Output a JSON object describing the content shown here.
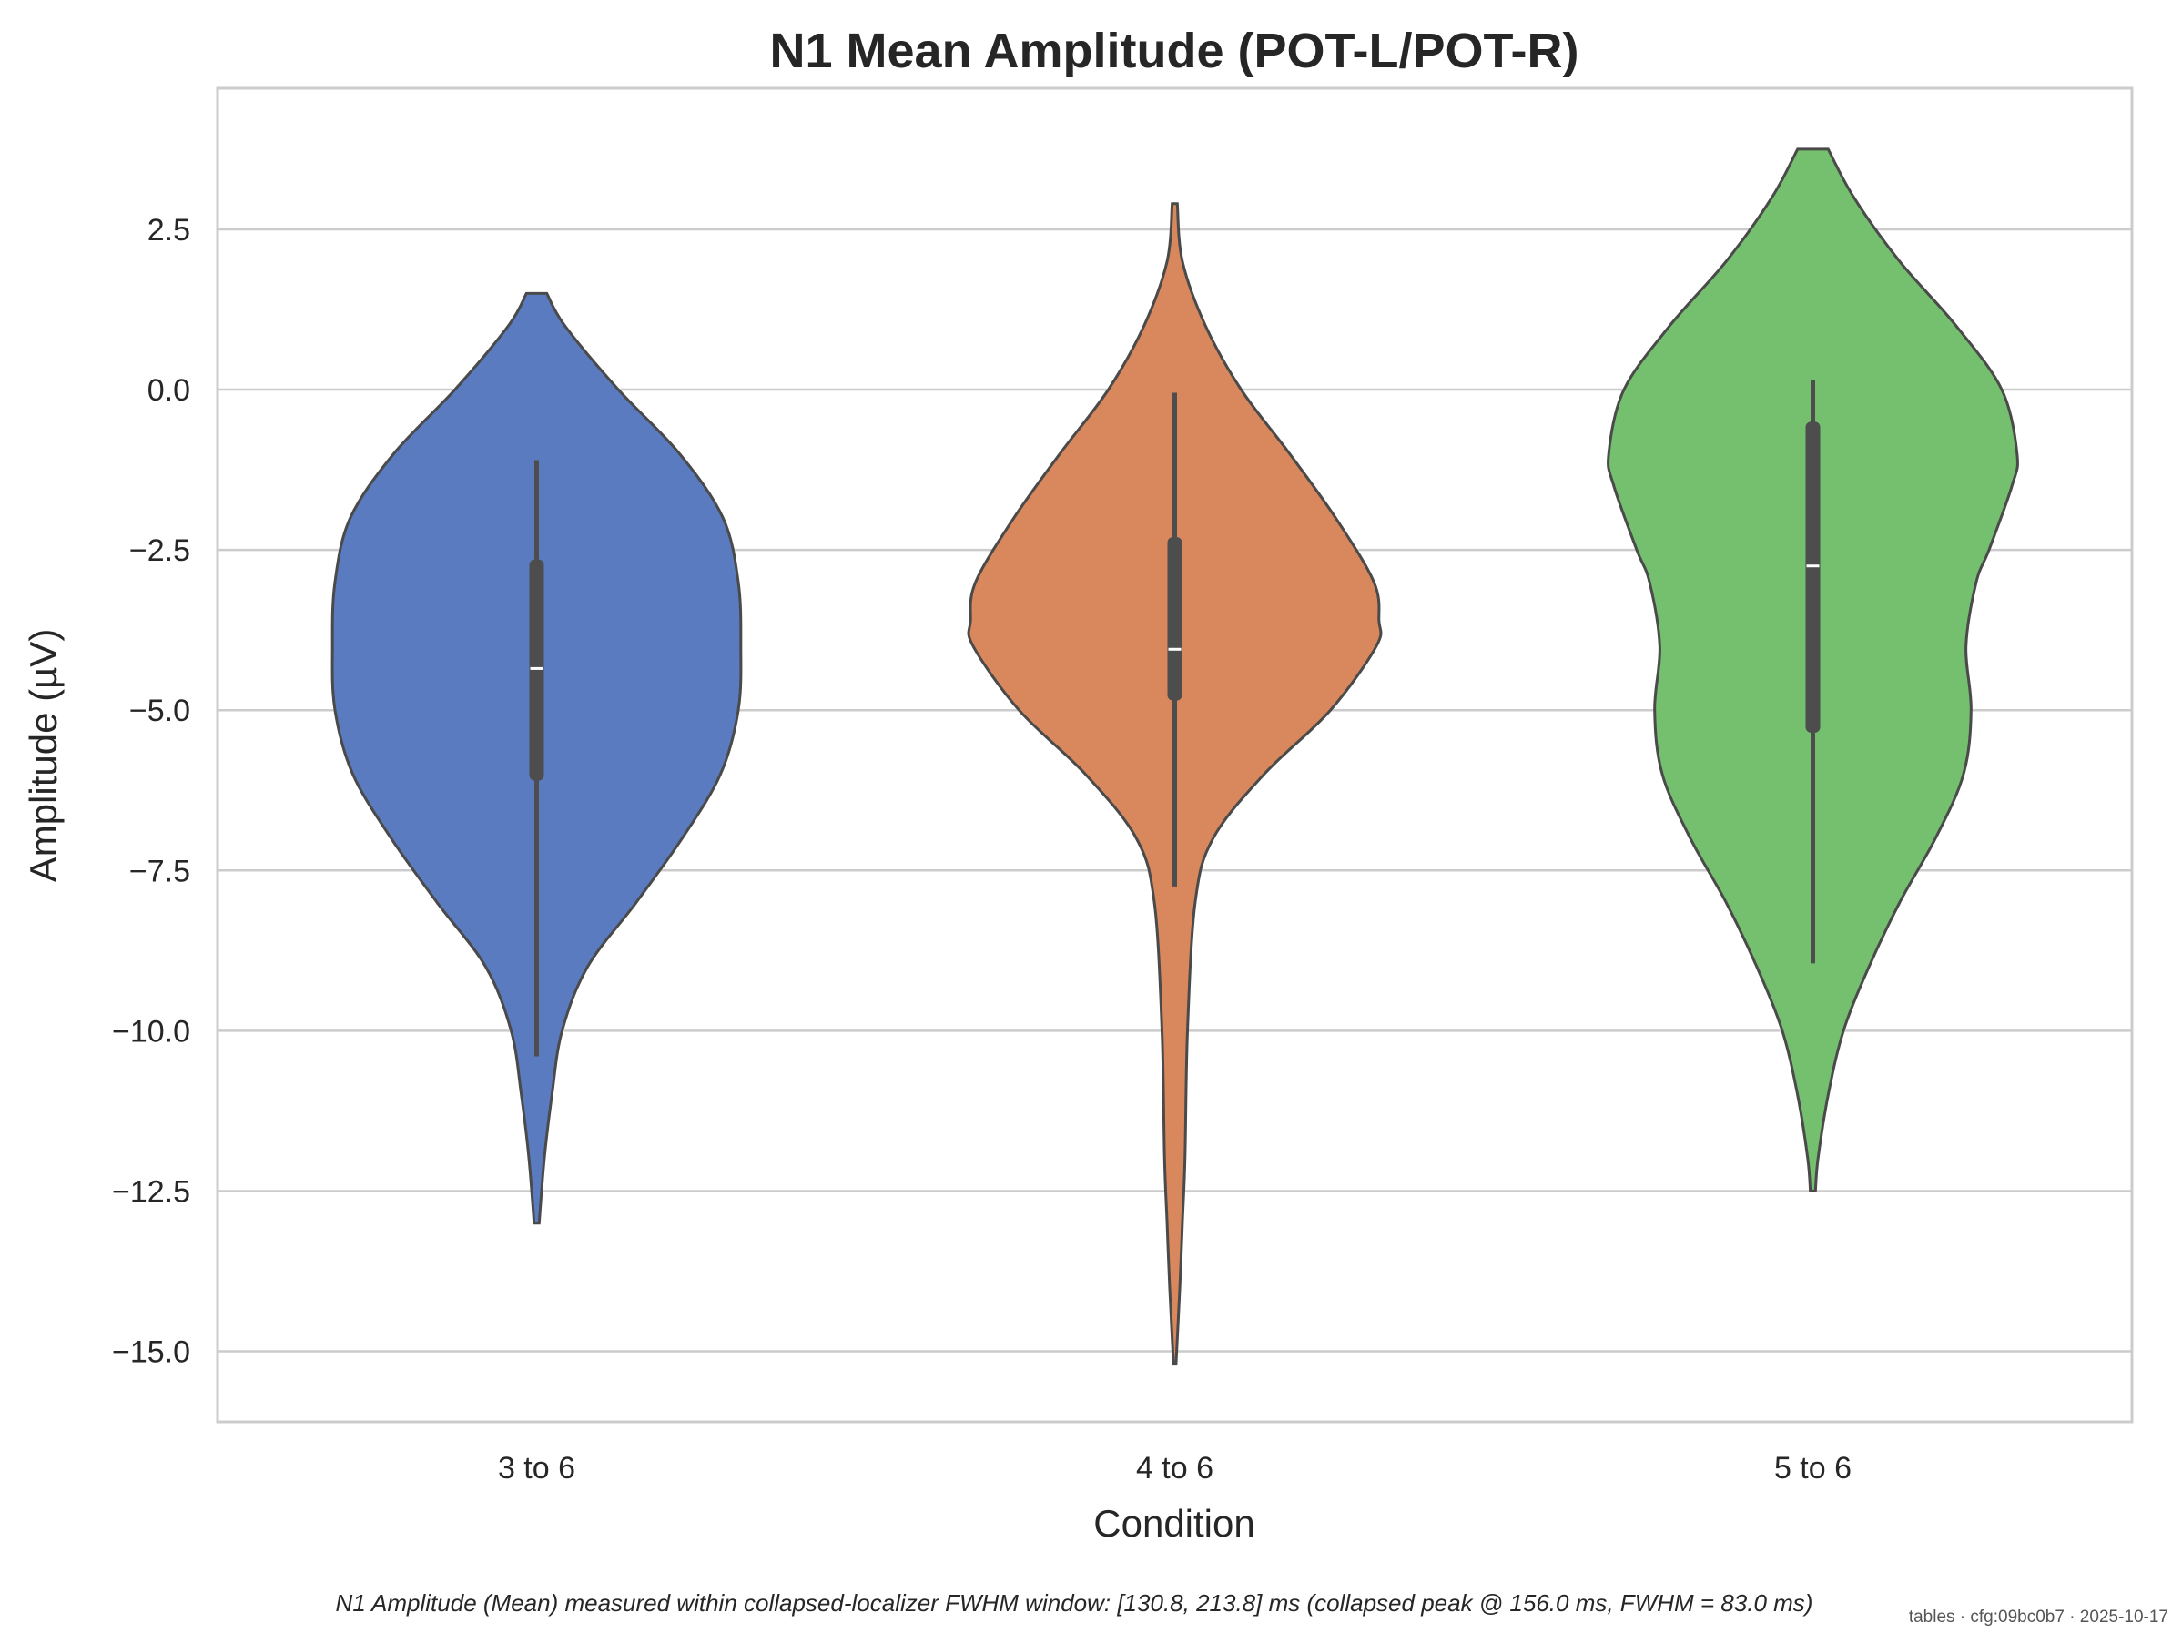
{
  "chart_data": {
    "type": "violin",
    "title": "N1 Mean Amplitude (POT-L/POT-R)",
    "xlabel": "Condition",
    "ylabel": "Amplitude (µV)",
    "categories": [
      "3 to 6",
      "4 to 6",
      "5 to 6"
    ],
    "ylim": [
      -16.1,
      4.7
    ],
    "yticks": [
      2.5,
      0.0,
      -2.5,
      -5.0,
      -7.5,
      -10.0,
      -12.5,
      -15.0
    ],
    "ytick_labels": [
      "2.5",
      "0.0",
      "−2.5",
      "−5.0",
      "−7.5",
      "−10.0",
      "−12.5",
      "−15.0"
    ],
    "grid": "horizontal",
    "series": [
      {
        "category": "3 to 6",
        "color": "#5a7bbf",
        "range": [
          -13.0,
          1.5
        ],
        "median": -4.35,
        "quartiles": [
          -6.1,
          -2.65
        ],
        "whiskers": [
          -10.4,
          -1.1
        ],
        "density": [
          [
            1.5,
            0.04
          ],
          [
            1.0,
            0.11
          ],
          [
            0.0,
            0.32
          ],
          [
            -1.0,
            0.56
          ],
          [
            -2.0,
            0.73
          ],
          [
            -3.0,
            0.79
          ],
          [
            -4.0,
            0.8
          ],
          [
            -5.0,
            0.79
          ],
          [
            -6.0,
            0.72
          ],
          [
            -7.0,
            0.57
          ],
          [
            -8.0,
            0.39
          ],
          [
            -9.0,
            0.2
          ],
          [
            -10.0,
            0.1
          ],
          [
            -11.0,
            0.06
          ],
          [
            -12.0,
            0.03
          ],
          [
            -13.0,
            0.01
          ]
        ]
      },
      {
        "category": "4 to 6",
        "color": "#d9885e",
        "range": [
          -15.2,
          2.9
        ],
        "median": -4.05,
        "quartiles": [
          -4.85,
          -2.3
        ],
        "whiskers": [
          -7.75,
          -0.05
        ],
        "density": [
          [
            2.9,
            0.01
          ],
          [
            2.0,
            0.03
          ],
          [
            1.0,
            0.12
          ],
          [
            0.0,
            0.26
          ],
          [
            -1.0,
            0.45
          ],
          [
            -2.0,
            0.63
          ],
          [
            -3.0,
            0.78
          ],
          [
            -3.6,
            0.8
          ],
          [
            -4.0,
            0.79
          ],
          [
            -5.0,
            0.61
          ],
          [
            -6.0,
            0.35
          ],
          [
            -7.0,
            0.15
          ],
          [
            -8.0,
            0.08
          ],
          [
            -10.0,
            0.05
          ],
          [
            -12.0,
            0.04
          ],
          [
            -13.0,
            0.03
          ],
          [
            -14.0,
            0.02
          ],
          [
            -15.2,
            0.005
          ]
        ]
      },
      {
        "category": "5 to 6",
        "color": "#74c06f",
        "range": [
          -12.5,
          3.75
        ],
        "median": -2.75,
        "quartiles": [
          -5.35,
          -0.5
        ],
        "whiskers": [
          -8.95,
          0.15
        ],
        "density": [
          [
            3.75,
            0.06
          ],
          [
            3.0,
            0.16
          ],
          [
            2.0,
            0.34
          ],
          [
            1.0,
            0.56
          ],
          [
            0.0,
            0.74
          ],
          [
            -1.0,
            0.8
          ],
          [
            -1.5,
            0.78
          ],
          [
            -2.5,
            0.69
          ],
          [
            -3.0,
            0.64
          ],
          [
            -4.0,
            0.6
          ],
          [
            -5.0,
            0.62
          ],
          [
            -6.0,
            0.59
          ],
          [
            -7.0,
            0.48
          ],
          [
            -8.0,
            0.34
          ],
          [
            -9.0,
            0.22
          ],
          [
            -10.0,
            0.12
          ],
          [
            -11.0,
            0.06
          ],
          [
            -12.0,
            0.02
          ],
          [
            -12.5,
            0.01
          ]
        ]
      }
    ],
    "caption": "N1 Amplitude (Mean) measured within collapsed-localizer FWHM window: [130.8, 213.8] ms (collapsed peak @ 156.0 ms, FWHM = 83.0 ms)",
    "stamp": "tables · cfg:09bc0b7 · 2025-10-17"
  }
}
